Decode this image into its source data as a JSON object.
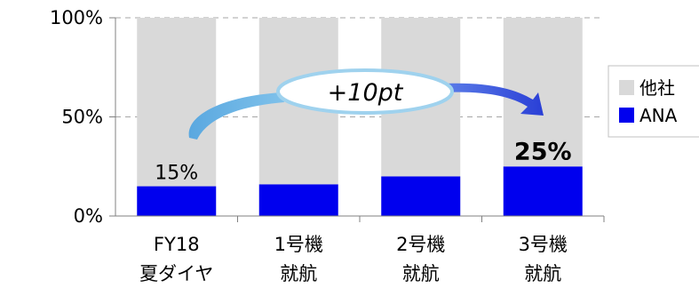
{
  "chart_data": {
    "type": "bar",
    "stacked": true,
    "categories": [
      [
        "FY18",
        "夏ダイヤ"
      ],
      [
        "1号機",
        "就航"
      ],
      [
        "2号機",
        "就航"
      ],
      [
        "3号機",
        "就航"
      ]
    ],
    "series": [
      {
        "name": "ANA",
        "values": [
          15,
          16,
          20,
          25
        ],
        "color": "#0000ee"
      },
      {
        "name": "他社",
        "values": [
          85,
          84,
          80,
          75
        ],
        "color": "#d9d9d9"
      }
    ],
    "y_ticks": [
      "0%",
      "50%",
      "100%"
    ],
    "ylim": [
      0,
      100
    ],
    "grid": true,
    "legend_position": "right",
    "data_labels": [
      {
        "category_index": 0,
        "text": "15%",
        "bold": false
      },
      {
        "category_index": 3,
        "text": "25%",
        "bold": true
      }
    ],
    "annotation": {
      "text": "+10pt",
      "from_category": 0,
      "to_category": 3
    }
  }
}
